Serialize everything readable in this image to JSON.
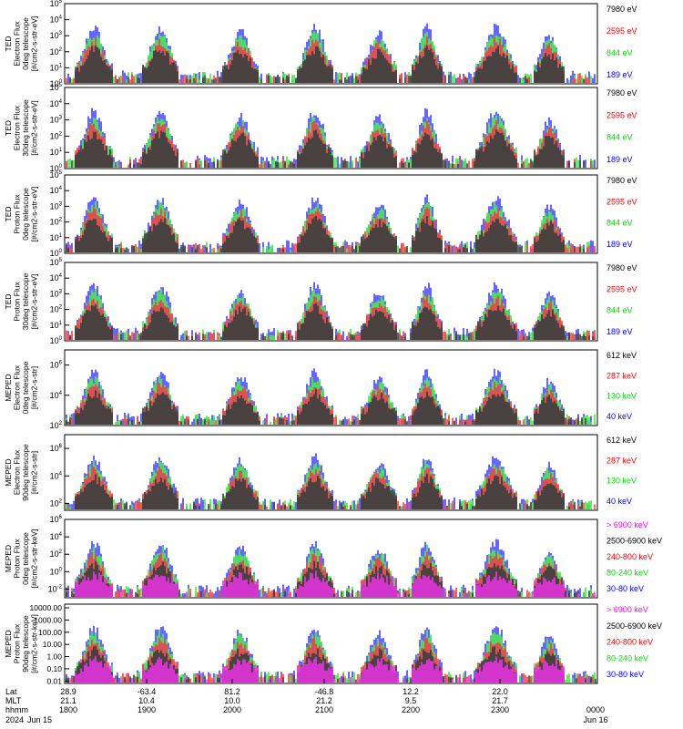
{
  "colors": {
    "blue": "#0000ff",
    "red": "#ff0000",
    "green": "#00e000",
    "black": "#000000",
    "magenta": "#ff00ff"
  },
  "chart_data": {
    "type": "line",
    "panels": [
      {
        "id": "ted-e-0",
        "ylabel_lines": [
          "TED",
          "Electron Flux",
          "0deg telescope",
          "[#/cm2-s-str-eV]"
        ],
        "ylog_range": [
          0,
          5
        ],
        "tick_exponents": [
          0,
          1,
          2,
          3,
          4,
          5
        ],
        "legend": [
          {
            "label": "7980 eV",
            "color": "black"
          },
          {
            "label": "2595 eV",
            "color": "red"
          },
          {
            "label": "844 eV",
            "color": "green"
          },
          {
            "label": "189 eV",
            "color": "blue"
          }
        ],
        "series_draw_order": [
          "blue",
          "green",
          "red",
          "black"
        ]
      },
      {
        "id": "ted-e-30",
        "ylabel_lines": [
          "TED",
          "Electron Flux",
          "30deg telescope",
          "[#/cm2-s-str-eV]"
        ],
        "ylog_range": [
          0,
          5
        ],
        "tick_exponents": [
          0,
          1,
          2,
          3,
          4,
          5
        ],
        "legend": [
          {
            "label": "7980 eV",
            "color": "black"
          },
          {
            "label": "2595 eV",
            "color": "red"
          },
          {
            "label": "844 eV",
            "color": "green"
          },
          {
            "label": "189 eV",
            "color": "blue"
          }
        ],
        "series_draw_order": [
          "blue",
          "green",
          "red",
          "black"
        ]
      },
      {
        "id": "ted-p-0",
        "ylabel_lines": [
          "TED",
          "Proton Flux",
          "0deg telescope",
          "[#/cm2-s-str-eV]"
        ],
        "ylog_range": [
          0,
          5
        ],
        "tick_exponents": [
          0,
          1,
          2,
          3,
          4,
          5
        ],
        "legend": [
          {
            "label": "7980 eV",
            "color": "black"
          },
          {
            "label": "2595 eV",
            "color": "red"
          },
          {
            "label": "844 eV",
            "color": "green"
          },
          {
            "label": "189 eV",
            "color": "blue"
          }
        ],
        "series_draw_order": [
          "blue",
          "green",
          "red",
          "black"
        ]
      },
      {
        "id": "ted-p-30",
        "ylabel_lines": [
          "TED",
          "Proton Flux",
          "30deg telescope",
          "[#/cm2-s-str-eV]"
        ],
        "ylog_range": [
          0,
          5
        ],
        "tick_exponents": [
          0,
          1,
          2,
          3,
          4,
          5
        ],
        "legend": [
          {
            "label": "7980 eV",
            "color": "black"
          },
          {
            "label": "2595 eV",
            "color": "red"
          },
          {
            "label": "844 eV",
            "color": "green"
          },
          {
            "label": "189 eV",
            "color": "blue"
          }
        ],
        "series_draw_order": [
          "blue",
          "green",
          "red",
          "black"
        ]
      },
      {
        "id": "meped-e-0",
        "ylabel_lines": [
          "MEPED",
          "Electron Flux",
          "0deg telescope",
          "[#/cm2-s-str]"
        ],
        "ylog_range": [
          2,
          7
        ],
        "tick_exponents": [
          2,
          4,
          6
        ],
        "legend": [
          {
            "label": "612 keV",
            "color": "black"
          },
          {
            "label": "287 keV",
            "color": "red"
          },
          {
            "label": "130 keV",
            "color": "green"
          },
          {
            "label": "40 keV",
            "color": "blue"
          }
        ],
        "series_draw_order": [
          "blue",
          "green",
          "red",
          "black"
        ]
      },
      {
        "id": "meped-e-90",
        "ylabel_lines": [
          "MEPED",
          "Electron Flux",
          "90deg telescope",
          "[#/cm2-s-str]"
        ],
        "ylog_range": [
          1.5,
          7
        ],
        "tick_exponents": [
          2,
          4,
          6
        ],
        "legend": [
          {
            "label": "612 keV",
            "color": "black"
          },
          {
            "label": "287 keV",
            "color": "red"
          },
          {
            "label": "130 keV",
            "color": "green"
          },
          {
            "label": "40 keV",
            "color": "blue"
          }
        ],
        "series_draw_order": [
          "blue",
          "green",
          "red",
          "black"
        ]
      },
      {
        "id": "meped-p-0",
        "ylabel_lines": [
          "MEPED",
          "Proton Flux",
          "0deg telescope",
          "[#/cm2-s-str-keV]"
        ],
        "ylog_range": [
          -3,
          6
        ],
        "tick_exponents": [
          -2,
          0,
          2,
          4,
          6
        ],
        "legend": [
          {
            "label": "> 6900 keV",
            "color": "magenta"
          },
          {
            "label": "2500-6900 keV",
            "color": "black"
          },
          {
            "label": "240-800 keV",
            "color": "red"
          },
          {
            "label": "80-240 keV",
            "color": "green"
          },
          {
            "label": "30-80 keV",
            "color": "blue"
          }
        ],
        "series_draw_order": [
          "blue",
          "green",
          "red",
          "black",
          "magenta"
        ]
      },
      {
        "id": "meped-p-90",
        "ylabel_lines": [
          "MEPED",
          "Proton Flux",
          "90deg telescope",
          "[#/cm2-s-str-keV]"
        ],
        "ylog_range": [
          -2.2,
          4.3
        ],
        "tick_labels": [
          "10000.00",
          "1000.00",
          "100.00",
          "10.00",
          "1.00",
          "0.10",
          "0.01"
        ],
        "tick_values": [
          4,
          3,
          2,
          1,
          0,
          -1,
          -2
        ],
        "legend": [
          {
            "label": "> 6900 keV",
            "color": "magenta"
          },
          {
            "label": "2500-6900 keV",
            "color": "black"
          },
          {
            "label": "240-800 keV",
            "color": "red"
          },
          {
            "label": "80-240 keV",
            "color": "green"
          },
          {
            "label": "30-80 keV",
            "color": "blue"
          }
        ],
        "series_draw_order": [
          "blue",
          "green",
          "red",
          "black",
          "magenta"
        ]
      }
    ],
    "x_axis": {
      "range_hhmm": [
        "1800",
        "0000"
      ],
      "row_labels": [
        "Lat",
        "MLT",
        "hhmm",
        "2024"
      ],
      "ticks": [
        {
          "lat": "28.9",
          "mlt": "21.1",
          "hhmm": "1800",
          "date": "Jun 15"
        },
        {
          "lat": "-63.4",
          "mlt": "10.4",
          "hhmm": "1900",
          "date": ""
        },
        {
          "lat": "81.2",
          "mlt": "10.0",
          "hhmm": "2000",
          "date": ""
        },
        {
          "lat": "-46.8",
          "mlt": "21.2",
          "hhmm": "2100",
          "date": ""
        },
        {
          "lat": "12.2",
          "mlt": "9.5",
          "hhmm": "2200",
          "date": ""
        },
        {
          "lat": "22.0",
          "mlt": "21.7",
          "hhmm": "2300",
          "date": ""
        },
        {
          "lat": "",
          "mlt": "",
          "hhmm": "0000",
          "date": "Jun 16"
        }
      ]
    }
  }
}
